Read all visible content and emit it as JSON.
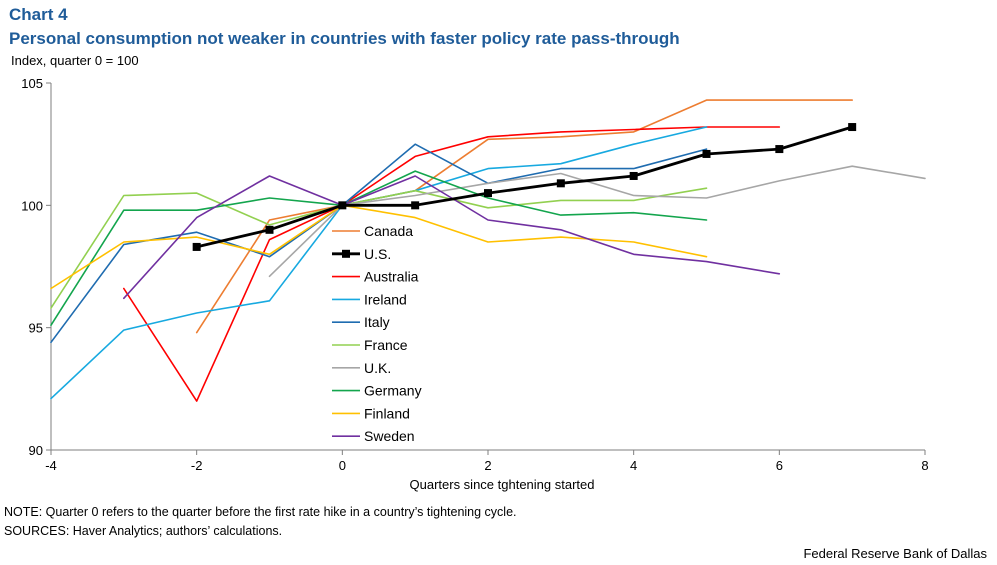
{
  "header": {
    "label": "Chart 4",
    "title": "Personal consumption not weaker in countries with faster policy rate pass-through",
    "subtitle": "Index,  quarter 0 = 100"
  },
  "footer": {
    "note": "NOTE: Quarter 0 refers to the quarter before the first rate hike in a country’s tightening cycle.",
    "sources": "SOURCES: Haver Analytics; authors’ calculations.",
    "credit": "Federal Reserve Bank of Dallas"
  },
  "chart_data": {
    "type": "line",
    "title": "Personal consumption not weaker in countries with faster policy rate pass-through",
    "xlabel": "Quarters  since tghtening  started",
    "ylabel": "Index,  quarter 0 = 100",
    "xlim": [
      -4,
      8
    ],
    "ylim": [
      90,
      105
    ],
    "xticks": [
      -4,
      -2,
      0,
      2,
      4,
      6,
      8
    ],
    "yticks": [
      90,
      95,
      100,
      105
    ],
    "grid": false,
    "legend_position": "center",
    "series": [
      {
        "name": "Canada",
        "color": "#ed7d31",
        "width": 1.6,
        "marker": false,
        "x": [
          -2,
          -1,
          0,
          1,
          2,
          3,
          4,
          5,
          6,
          7
        ],
        "y": [
          94.8,
          99.4,
          100.0,
          100.6,
          102.7,
          102.8,
          103.0,
          104.3,
          104.3,
          104.3
        ]
      },
      {
        "name": "U.S.",
        "color": "#000000",
        "width": 2.8,
        "marker": true,
        "x": [
          -2,
          -1,
          0,
          1,
          2,
          3,
          4,
          5,
          6,
          7
        ],
        "y": [
          98.3,
          99.0,
          100.0,
          100.0,
          100.5,
          100.9,
          101.2,
          102.1,
          102.3,
          103.2
        ]
      },
      {
        "name": "Australia",
        "color": "#ff0000",
        "width": 1.6,
        "marker": false,
        "x": [
          -3,
          -2,
          -1,
          0,
          1,
          2,
          3,
          4,
          5,
          6
        ],
        "y": [
          96.6,
          92.0,
          98.6,
          100.0,
          102.0,
          102.8,
          103.0,
          103.1,
          103.2,
          103.2
        ]
      },
      {
        "name": "Ireland",
        "color": "#17a9e0",
        "width": 1.6,
        "marker": false,
        "x": [
          -4,
          -3,
          -2,
          -1,
          0,
          1,
          2,
          3,
          4,
          5
        ],
        "y": [
          92.1,
          94.9,
          95.6,
          96.1,
          100.0,
          100.6,
          101.5,
          101.7,
          102.5,
          103.2
        ]
      },
      {
        "name": "Italy",
        "color": "#1f6cb0",
        "width": 1.6,
        "marker": false,
        "x": [
          -4,
          -3,
          -2,
          -1,
          0,
          1,
          2,
          3,
          4,
          5
        ],
        "y": [
          94.4,
          98.4,
          98.9,
          97.9,
          100.0,
          102.5,
          100.9,
          101.5,
          101.5,
          102.3
        ]
      },
      {
        "name": "France",
        "color": "#92d050",
        "width": 1.6,
        "marker": false,
        "x": [
          -4,
          -3,
          -2,
          -1,
          0,
          1,
          2,
          3,
          4,
          5
        ],
        "y": [
          95.8,
          100.4,
          100.5,
          99.2,
          100.0,
          100.6,
          99.9,
          100.2,
          100.2,
          100.7
        ]
      },
      {
        "name": "U.K.",
        "color": "#a6a6a6",
        "width": 1.6,
        "marker": false,
        "x": [
          -1,
          0,
          1,
          2,
          3,
          4,
          5,
          6,
          7,
          8
        ],
        "y": [
          97.1,
          100.0,
          100.4,
          100.9,
          101.3,
          100.4,
          100.3,
          101.0,
          101.6,
          101.1
        ]
      },
      {
        "name": "Germany",
        "color": "#13a54d",
        "width": 1.6,
        "marker": false,
        "x": [
          -4,
          -3,
          -2,
          -1,
          0,
          1,
          2,
          3,
          4,
          5
        ],
        "y": [
          95.1,
          99.8,
          99.8,
          100.3,
          100.0,
          101.4,
          100.3,
          99.6,
          99.7,
          99.4
        ]
      },
      {
        "name": "Finland",
        "color": "#ffc000",
        "width": 1.6,
        "marker": false,
        "x": [
          -4,
          -3,
          -2,
          -1,
          0,
          1,
          2,
          3,
          4,
          5
        ],
        "y": [
          96.6,
          98.5,
          98.7,
          98.0,
          100.0,
          99.5,
          98.5,
          98.7,
          98.5,
          97.9
        ]
      },
      {
        "name": "Sweden",
        "color": "#7030a0",
        "width": 1.6,
        "marker": false,
        "x": [
          -3,
          -2,
          -1,
          0,
          1,
          2,
          3,
          4,
          5,
          6
        ],
        "y": [
          96.2,
          99.5,
          101.2,
          100.0,
          101.2,
          99.4,
          99.0,
          98.0,
          97.7,
          97.2
        ]
      }
    ]
  }
}
